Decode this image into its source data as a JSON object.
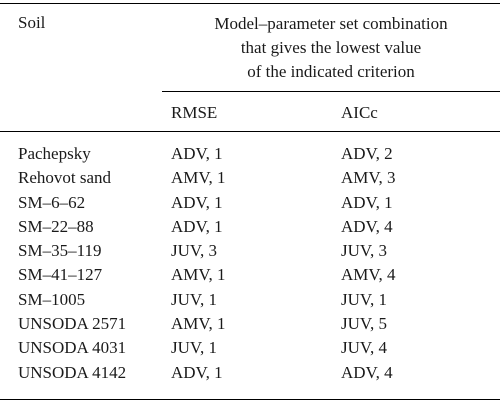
{
  "table": {
    "header_soil": "Soil",
    "group_header_lines": [
      "Model–parameter set combination",
      "that gives the lowest value",
      "of the indicated criterion"
    ],
    "header_rmse": "RMSE",
    "header_aicc": "AICc",
    "rows": [
      {
        "soil": "Pachepsky",
        "rmse": "ADV, 1",
        "aicc": "ADV, 2"
      },
      {
        "soil": "Rehovot sand",
        "rmse": "AMV, 1",
        "aicc": "AMV, 3"
      },
      {
        "soil": "SM–6–62",
        "rmse": "ADV, 1",
        "aicc": "ADV, 1"
      },
      {
        "soil": "SM–22–88",
        "rmse": "ADV, 1",
        "aicc": "ADV, 4"
      },
      {
        "soil": "SM–35–119",
        "rmse": "JUV, 3",
        "aicc": "JUV, 3"
      },
      {
        "soil": "SM–41–127",
        "rmse": "AMV, 1",
        "aicc": "AMV, 4"
      },
      {
        "soil": "SM–1005",
        "rmse": "JUV, 1",
        "aicc": "JUV, 1"
      },
      {
        "soil": "UNSODA 2571",
        "rmse": "AMV, 1",
        "aicc": "JUV, 5"
      },
      {
        "soil": "UNSODA 4031",
        "rmse": "JUV, 1",
        "aicc": "JUV, 4"
      },
      {
        "soil": "UNSODA 4142",
        "rmse": "ADV, 1",
        "aicc": "ADV, 4"
      }
    ]
  }
}
